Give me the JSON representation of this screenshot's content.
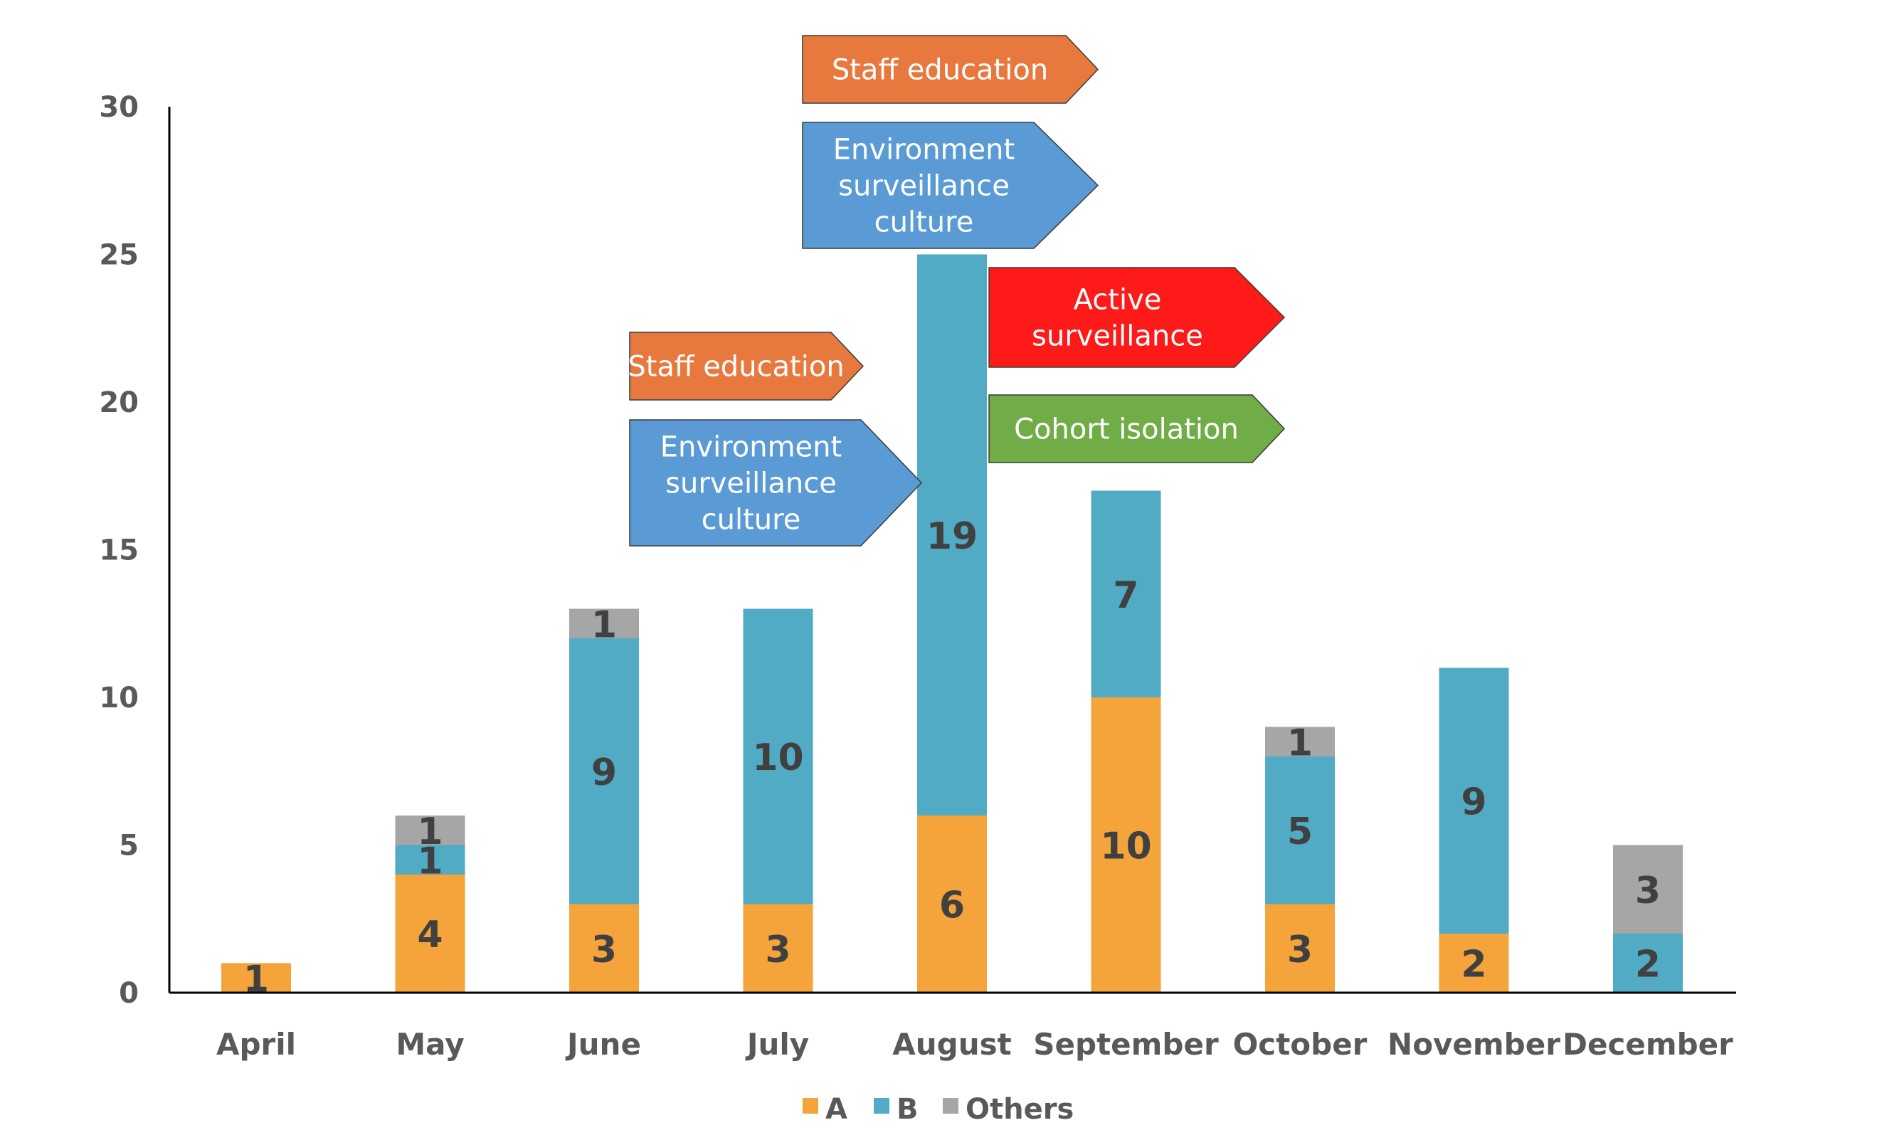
{
  "chart_data": {
    "type": "bar",
    "stacked": true,
    "categories": [
      "April",
      "May",
      "June",
      "July",
      "August",
      "September",
      "October",
      "November",
      "December"
    ],
    "series": [
      {
        "name": "A",
        "color": "#F4A43A",
        "values": [
          1,
          4,
          3,
          3,
          6,
          10,
          3,
          2,
          0
        ]
      },
      {
        "name": "B",
        "color": "#51ABC5",
        "values": [
          0,
          1,
          9,
          10,
          19,
          7,
          5,
          9,
          2
        ]
      },
      {
        "name": "Others",
        "color": "#A6A6A6",
        "values": [
          0,
          1,
          1,
          0,
          0,
          0,
          1,
          0,
          3
        ]
      }
    ],
    "ylim": [
      0,
      30
    ],
    "yticks": [
      0,
      5,
      10,
      15,
      20,
      25,
      30
    ],
    "grid": false,
    "legend_position": "bottom",
    "annotations": [
      {
        "lines": [
          "Staff education"
        ],
        "color": "#E8793E",
        "month": "June"
      },
      {
        "lines": [
          "Environment",
          "surveillance",
          "culture"
        ],
        "color": "#5B9BD5",
        "month": "June"
      },
      {
        "lines": [
          "Staff education"
        ],
        "color": "#E8793E",
        "month": "August"
      },
      {
        "lines": [
          "Environment",
          "surveillance",
          "culture"
        ],
        "color": "#5B9BD5",
        "month": "August"
      },
      {
        "lines": [
          "Active",
          "surveillance"
        ],
        "color": "#FF1A1A",
        "month": "August"
      },
      {
        "lines": [
          "Cohort isolation"
        ],
        "color": "#70AD47",
        "month": "August"
      }
    ]
  }
}
